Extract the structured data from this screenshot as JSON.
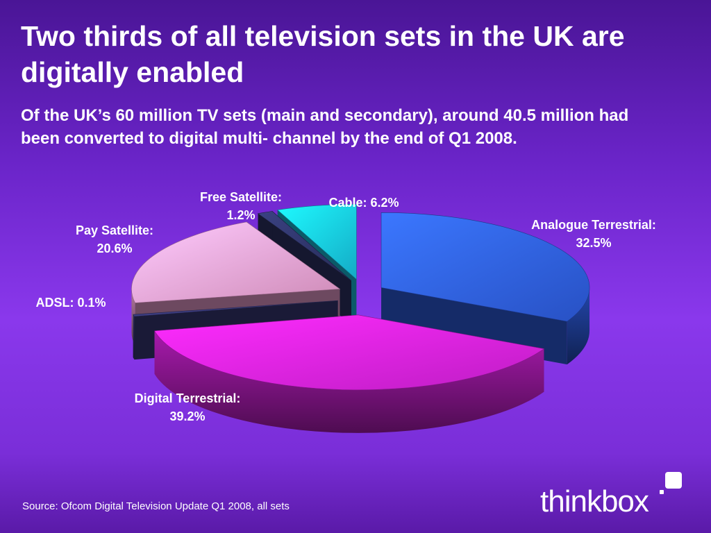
{
  "slide": {
    "title": "Two thirds of all television sets in the UK are digitally enabled",
    "subtitle": "Of the UK’s 60 million TV sets (main and secondary), around 40.5 million had been converted to digital multi- channel by the end of Q1 2008.",
    "source": "Source: Ofcom Digital Television Update Q1 2008, all sets"
  },
  "logo": {
    "text": "thinkbox"
  },
  "chart_data": {
    "type": "pie",
    "style": "3d-exploded",
    "title": "",
    "slices": [
      {
        "label_line1": "Analogue Terrestrial:",
        "label_line2": "32.5%",
        "value": 32.5,
        "color": "#2f5fe6"
      },
      {
        "label_line1": "Digital Terrestrial:",
        "label_line2": "39.2%",
        "value": 39.2,
        "color": "#e022e6"
      },
      {
        "label_line1": "ADSL: 0.1%",
        "label_line2": "",
        "value": 0.1,
        "color": "#3a3a7a"
      },
      {
        "label_line1": "Pay Satellite:",
        "label_line2": "20.6%",
        "value": 20.6,
        "color": "#f2a2d6"
      },
      {
        "label_line1": "Free Satellite:",
        "label_line2": "1.2%",
        "value": 1.2,
        "color": "#2e3468"
      },
      {
        "label_line1": "Cable: 6.2%",
        "label_line2": "",
        "value": 6.2,
        "color": "#18c8e8"
      }
    ]
  }
}
